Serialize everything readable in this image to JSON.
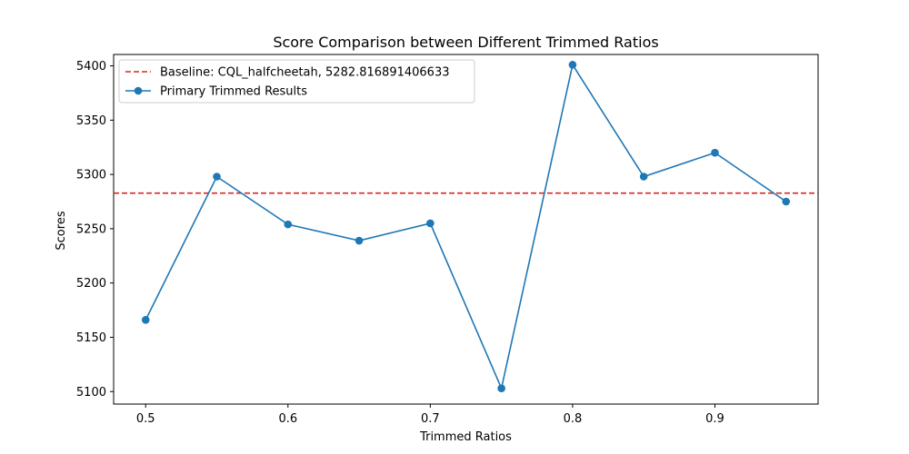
{
  "chart_data": {
    "type": "line",
    "title": "Score Comparison between Different Trimmed Ratios",
    "xlabel": "Trimmed Ratios",
    "ylabel": "Scores",
    "xlim": [
      0.4775,
      0.9725
    ],
    "ylim": [
      5088.5,
      5410.5
    ],
    "xticks": [
      0.5,
      0.6,
      0.7,
      0.8,
      0.9
    ],
    "xtick_labels": [
      "0.5",
      "0.6",
      "0.7",
      "0.8",
      "0.9"
    ],
    "yticks": [
      5100,
      5150,
      5200,
      5250,
      5300,
      5350,
      5400
    ],
    "ytick_labels": [
      "5100",
      "5150",
      "5200",
      "5250",
      "5300",
      "5350",
      "5400"
    ],
    "grid": false,
    "legend_position": "top-left",
    "baseline": {
      "name": "Baseline: CQL_halfcheetah, 5282.816891406633",
      "value": 5282.816891406633,
      "color": "#d62728",
      "style": "dashed"
    },
    "series": [
      {
        "name": "Primary Trimmed Results",
        "color": "#1f77b4",
        "x": [
          0.5,
          0.55,
          0.6,
          0.65,
          0.7,
          0.75,
          0.8,
          0.85,
          0.9,
          0.95
        ],
        "y": [
          5166,
          5298,
          5254,
          5239,
          5255,
          5103,
          5401,
          5298,
          5320,
          5275
        ]
      }
    ]
  }
}
